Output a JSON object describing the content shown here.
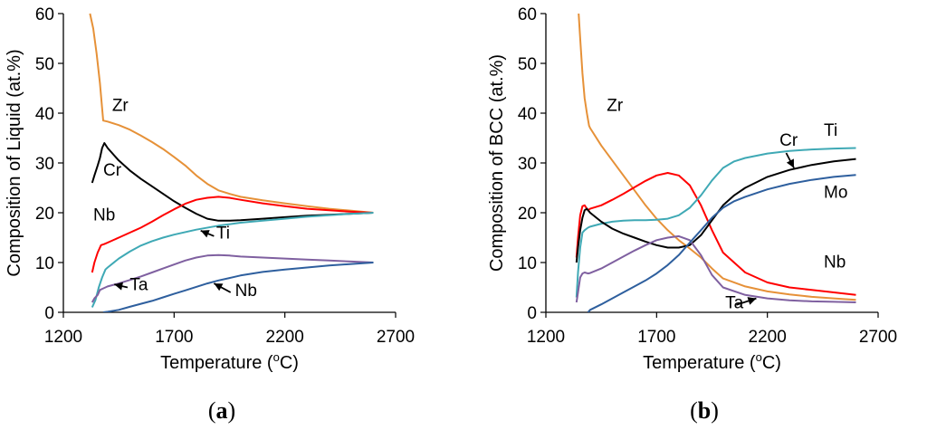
{
  "chart_data": [
    {
      "type": "line",
      "panel": "(a)",
      "caption": {
        "open": "(",
        "letter": "a",
        "close": ")"
      },
      "xlabel": "Temperature",
      "xlabel_unit": {
        "open": " (",
        "sup": "o",
        "rest": "C)"
      },
      "ylabel": "Composition of Liquid (at.%)",
      "xlim": [
        1200,
        2700
      ],
      "ylim": [
        0,
        60
      ],
      "xticks": [
        "1200",
        "1700",
        "2200",
        "2700"
      ],
      "yticks": [
        "0",
        "10",
        "20",
        "30",
        "40",
        "50",
        "60"
      ],
      "series": [
        {
          "name": "Zr",
          "color": "#e69138",
          "x": [
            1320,
            1335,
            1350,
            1365,
            1380,
            1400,
            1450,
            1500,
            1550,
            1600,
            1650,
            1700,
            1750,
            1800,
            1850,
            1900,
            1950,
            2000,
            2100,
            2200,
            2300,
            2400,
            2500,
            2600
          ],
          "y": [
            60,
            57,
            52,
            46,
            38.5,
            38.3,
            37.6,
            36.7,
            35.5,
            34.2,
            32.8,
            31.2,
            29.5,
            27.5,
            25.8,
            24.5,
            23.8,
            23.2,
            22.5,
            21.9,
            21.3,
            20.8,
            20.4,
            20
          ]
        },
        {
          "name": "Cr",
          "color": "#000000",
          "x": [
            1330,
            1340,
            1355,
            1365,
            1375,
            1385,
            1400,
            1450,
            1500,
            1550,
            1600,
            1650,
            1700,
            1750,
            1800,
            1850,
            1900,
            1950,
            2000,
            2100,
            2200,
            2300,
            2400,
            2500,
            2600
          ],
          "y": [
            26,
            27.5,
            29.5,
            31,
            33,
            34,
            33,
            30.5,
            28.5,
            26.8,
            25.3,
            23.8,
            22.3,
            21,
            19.8,
            18.8,
            18.4,
            18.4,
            18.5,
            18.8,
            19.1,
            19.4,
            19.6,
            19.8,
            20
          ]
        },
        {
          "name": "Nb",
          "color": "#ff0000",
          "x": [
            1330,
            1340,
            1355,
            1370,
            1385,
            1400,
            1450,
            1500,
            1550,
            1600,
            1650,
            1700,
            1750,
            1800,
            1850,
            1900,
            1950,
            2000,
            2100,
            2200,
            2300,
            2400,
            2500,
            2600
          ],
          "y": [
            8,
            10,
            12,
            13.5,
            13.7,
            14,
            15,
            16,
            17,
            18.2,
            19.5,
            20.7,
            21.8,
            22.6,
            23,
            23.2,
            23,
            22.6,
            21.9,
            21.3,
            20.8,
            20.5,
            20.2,
            20
          ]
        },
        {
          "name": "Ti",
          "color": "#3fa9b5",
          "x": [
            1330,
            1345,
            1360,
            1375,
            1390,
            1400,
            1450,
            1500,
            1550,
            1600,
            1650,
            1700,
            1800,
            1900,
            2000,
            2100,
            2200,
            2300,
            2400,
            2500,
            2600
          ],
          "y": [
            1,
            2.5,
            5,
            7,
            8.6,
            9,
            10.8,
            12.2,
            13.4,
            14.3,
            15,
            15.6,
            16.6,
            17.4,
            18,
            18.4,
            18.8,
            19.2,
            19.5,
            19.8,
            20
          ]
        },
        {
          "name": "Ta",
          "color": "#7f60a0",
          "x": [
            1330,
            1340,
            1355,
            1365,
            1380,
            1400,
            1450,
            1500,
            1550,
            1600,
            1650,
            1700,
            1750,
            1800,
            1850,
            1900,
            1950,
            2000,
            2100,
            2200,
            2300,
            2400,
            2500,
            2600
          ],
          "y": [
            2,
            2.8,
            3.5,
            4.5,
            4.8,
            5.2,
            5.8,
            6.5,
            7.2,
            8,
            8.8,
            9.6,
            10.4,
            11,
            11.4,
            11.5,
            11.4,
            11.2,
            11,
            10.8,
            10.6,
            10.4,
            10.2,
            10
          ]
        },
        {
          "name": "Nb",
          "color": "#2e5f9e",
          "x": [
            1380,
            1400,
            1450,
            1500,
            1550,
            1600,
            1650,
            1700,
            1750,
            1800,
            1850,
            1900,
            1950,
            2000,
            2100,
            2200,
            2300,
            2400,
            2500,
            2600
          ],
          "y": [
            0,
            0.1,
            0.5,
            1.1,
            1.7,
            2.3,
            3,
            3.7,
            4.4,
            5.1,
            5.8,
            6.4,
            6.9,
            7.4,
            8.1,
            8.6,
            9,
            9.4,
            9.7,
            10
          ]
        }
      ],
      "labels": [
        {
          "text": "Zr",
          "x": 1420,
          "y": 40.5
        },
        {
          "text": "Cr",
          "x": 1380,
          "y": 27.5
        },
        {
          "text": "Nb",
          "x": 1335,
          "y": 18.5
        },
        {
          "text": "Ti",
          "x": 1890,
          "y": 14.8,
          "arrow": {
            "from": [
              1880,
              15.3
            ],
            "to": [
              1820,
              16.4
            ]
          }
        },
        {
          "text": "Ta",
          "x": 1500,
          "y": 4.5,
          "arrow": {
            "from": [
              1490,
              5.0
            ],
            "to": [
              1430,
              5.6
            ]
          }
        },
        {
          "text": "Nb",
          "x": 1975,
          "y": 3.3,
          "arrow": {
            "from": [
              1955,
              4.0
            ],
            "to": [
              1880,
              5.8
            ]
          }
        }
      ]
    },
    {
      "type": "line",
      "panel": "(b)",
      "caption": {
        "open": "(",
        "letter": "b",
        "close": ")"
      },
      "xlabel": "Temperature",
      "xlabel_unit": {
        "open": " (",
        "sup": "o",
        "rest": "C)"
      },
      "ylabel": "Composition of BCC (at.%)",
      "xlim": [
        1200,
        2700
      ],
      "ylim": [
        0,
        60
      ],
      "xticks": [
        "1200",
        "1700",
        "2200",
        "2700"
      ],
      "yticks": [
        "0",
        "10",
        "20",
        "30",
        "40",
        "50",
        "60"
      ],
      "series": [
        {
          "name": "Zr",
          "color": "#e69138",
          "x": [
            1348,
            1355,
            1365,
            1375,
            1385,
            1395,
            1400,
            1450,
            1500,
            1550,
            1600,
            1650,
            1700,
            1750,
            1800,
            1850,
            1900,
            1950,
            2000,
            2100,
            2200,
            2300,
            2400,
            2500,
            2600
          ],
          "y": [
            60,
            55,
            48,
            43,
            40,
            37.5,
            37,
            33.5,
            30.5,
            27.5,
            24.5,
            21.5,
            18.8,
            16.5,
            14.5,
            12.8,
            11,
            8.8,
            6.8,
            5.2,
            4.2,
            3.6,
            3.1,
            2.8,
            2.5
          ]
        },
        {
          "name": "Nb",
          "color": "#ff0000",
          "x": [
            1338,
            1345,
            1355,
            1365,
            1375,
            1390,
            1400,
            1450,
            1500,
            1550,
            1600,
            1650,
            1700,
            1750,
            1800,
            1850,
            1900,
            1950,
            2000,
            2100,
            2200,
            2300,
            2400,
            2500,
            2600
          ],
          "y": [
            11,
            15,
            19.5,
            21.3,
            21.5,
            20.5,
            20.8,
            21.5,
            22.6,
            23.8,
            25.1,
            26.4,
            27.5,
            28,
            27.5,
            25.5,
            21.5,
            16.5,
            12,
            8,
            6,
            5,
            4.5,
            4,
            3.5
          ]
        },
        {
          "name": "Ti",
          "color": "#3fa9b5",
          "x": [
            1338,
            1345,
            1355,
            1365,
            1375,
            1390,
            1400,
            1450,
            1500,
            1550,
            1600,
            1650,
            1700,
            1750,
            1800,
            1850,
            1900,
            1950,
            2000,
            2050,
            2100,
            2200,
            2300,
            2400,
            2500,
            2600
          ],
          "y": [
            3,
            8,
            13,
            16,
            16.5,
            17,
            17.2,
            17.8,
            18.2,
            18.4,
            18.5,
            18.5,
            18.6,
            18.8,
            19.5,
            21,
            23.5,
            26.5,
            29,
            30.3,
            31,
            31.9,
            32.4,
            32.7,
            32.9,
            33
          ]
        },
        {
          "name": "Cr",
          "color": "#000000",
          "x": [
            1338,
            1345,
            1355,
            1365,
            1375,
            1385,
            1400,
            1450,
            1500,
            1550,
            1600,
            1650,
            1700,
            1750,
            1800,
            1850,
            1900,
            1950,
            2000,
            2050,
            2100,
            2200,
            2300,
            2400,
            2500,
            2600
          ],
          "y": [
            10,
            13,
            16.5,
            19,
            20.5,
            20.8,
            20,
            18.2,
            16.8,
            15.8,
            15,
            14.2,
            13.5,
            13,
            13,
            13.5,
            15.5,
            18.5,
            21.5,
            23.5,
            25,
            27.2,
            28.6,
            29.6,
            30.3,
            30.8
          ]
        },
        {
          "name": "Ta",
          "color": "#7f60a0",
          "x": [
            1338,
            1345,
            1355,
            1365,
            1375,
            1390,
            1400,
            1450,
            1500,
            1550,
            1600,
            1650,
            1700,
            1750,
            1800,
            1850,
            1900,
            1950,
            2000,
            2100,
            2200,
            2300,
            2400,
            2500,
            2600
          ],
          "y": [
            2,
            4,
            7,
            7.8,
            8,
            7.8,
            7.9,
            8.8,
            10,
            11.2,
            12.4,
            13.5,
            14.5,
            15,
            15.3,
            14.5,
            11.5,
            7.5,
            5,
            3.5,
            2.8,
            2.4,
            2.2,
            2.1,
            2
          ]
        },
        {
          "name": "Mo",
          "color": "#2e5f9e",
          "x": [
            1390,
            1400,
            1450,
            1500,
            1550,
            1600,
            1650,
            1700,
            1750,
            1800,
            1850,
            1900,
            1950,
            2000,
            2050,
            2100,
            2200,
            2300,
            2400,
            2500,
            2600
          ],
          "y": [
            0,
            0.5,
            1.6,
            2.8,
            4,
            5.2,
            6.4,
            7.8,
            9.5,
            11.5,
            14,
            16.5,
            19,
            21,
            22.3,
            23.2,
            24.7,
            25.8,
            26.6,
            27.2,
            27.6
          ]
        }
      ],
      "labels": [
        {
          "text": "Zr",
          "x": 1475,
          "y": 40.5
        },
        {
          "text": "Cr",
          "x": 2255,
          "y": 33.5,
          "arrow": {
            "from": [
              2285,
              32.0
            ],
            "to": [
              2320,
              29.0
            ]
          }
        },
        {
          "text": "Ti",
          "x": 2455,
          "y": 35.5
        },
        {
          "text": "Mo",
          "x": 2455,
          "y": 23
        },
        {
          "text": "Nb",
          "x": 2455,
          "y": 9
        },
        {
          "text": "Ta",
          "x": 2010,
          "y": 0.8,
          "arrow": {
            "from": [
              2060,
              1.5
            ],
            "to": [
              2150,
              2.8
            ]
          }
        }
      ]
    }
  ]
}
